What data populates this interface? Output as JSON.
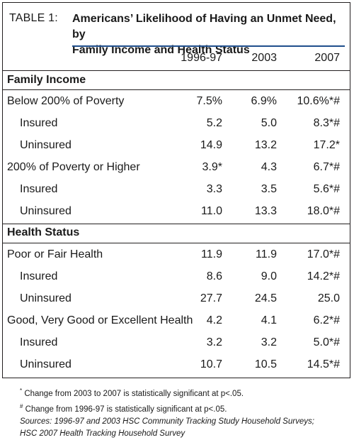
{
  "table": {
    "label": "TABLE 1:",
    "title_line1": "Americans’ Likelihood of Having an Unmet Need, by",
    "title_line2": "Family Income and Health Status",
    "columns": [
      "1996-97",
      "2003",
      "2007"
    ],
    "sections": [
      {
        "heading": "Family Income",
        "rows": [
          {
            "label": "Below 200% of Poverty",
            "indent": false,
            "values": [
              "7.5%",
              "6.9%",
              "10.6%*#"
            ]
          },
          {
            "label": "Insured",
            "indent": true,
            "values": [
              "5.2",
              "5.0",
              "8.3*#"
            ]
          },
          {
            "label": "Uninsured",
            "indent": true,
            "values": [
              "14.9",
              "13.2",
              "17.2*"
            ]
          },
          {
            "label": "200% of Poverty or Higher",
            "indent": false,
            "values": [
              "3.9*",
              "4.3",
              "6.7*#"
            ]
          },
          {
            "label": "Insured",
            "indent": true,
            "values": [
              "3.3",
              "3.5",
              "5.6*#"
            ]
          },
          {
            "label": "Uninsured",
            "indent": true,
            "values": [
              "11.0",
              "13.3",
              "18.0*#"
            ]
          }
        ]
      },
      {
        "heading": "Health Status",
        "rows": [
          {
            "label": "Poor or Fair Health",
            "indent": false,
            "values": [
              "11.9",
              "11.9",
              "17.0*#"
            ]
          },
          {
            "label": "Insured",
            "indent": true,
            "values": [
              "8.6",
              "9.0",
              "14.2*#"
            ]
          },
          {
            "label": "Uninsured",
            "indent": true,
            "values": [
              "27.7",
              "24.5",
              "25.0"
            ]
          },
          {
            "label": "Good, Very Good or Excellent Health",
            "indent": false,
            "values": [
              "4.2",
              "4.1",
              "6.2*#"
            ]
          },
          {
            "label": "Insured",
            "indent": true,
            "values": [
              "3.2",
              "3.2",
              "5.0*#"
            ]
          },
          {
            "label": "Uninsured",
            "indent": true,
            "values": [
              "10.7",
              "10.5",
              "14.5*#"
            ]
          }
        ]
      }
    ]
  },
  "footnotes": {
    "note1_symbol": "*",
    "note1_text": " Change from 2003 to 2007 is statistically significant at p<.05.",
    "note2_symbol": "#",
    "note2_text": " Change from 1996-97 is statistically significant at p<.05.",
    "sources": "Sources: 1996-97 and 2003 HSC Community Tracking Study Household Surveys; HSC 2007 Health Tracking Household Survey"
  },
  "colors": {
    "accent_rule": "#1f4e8c",
    "border": "#231f20"
  }
}
